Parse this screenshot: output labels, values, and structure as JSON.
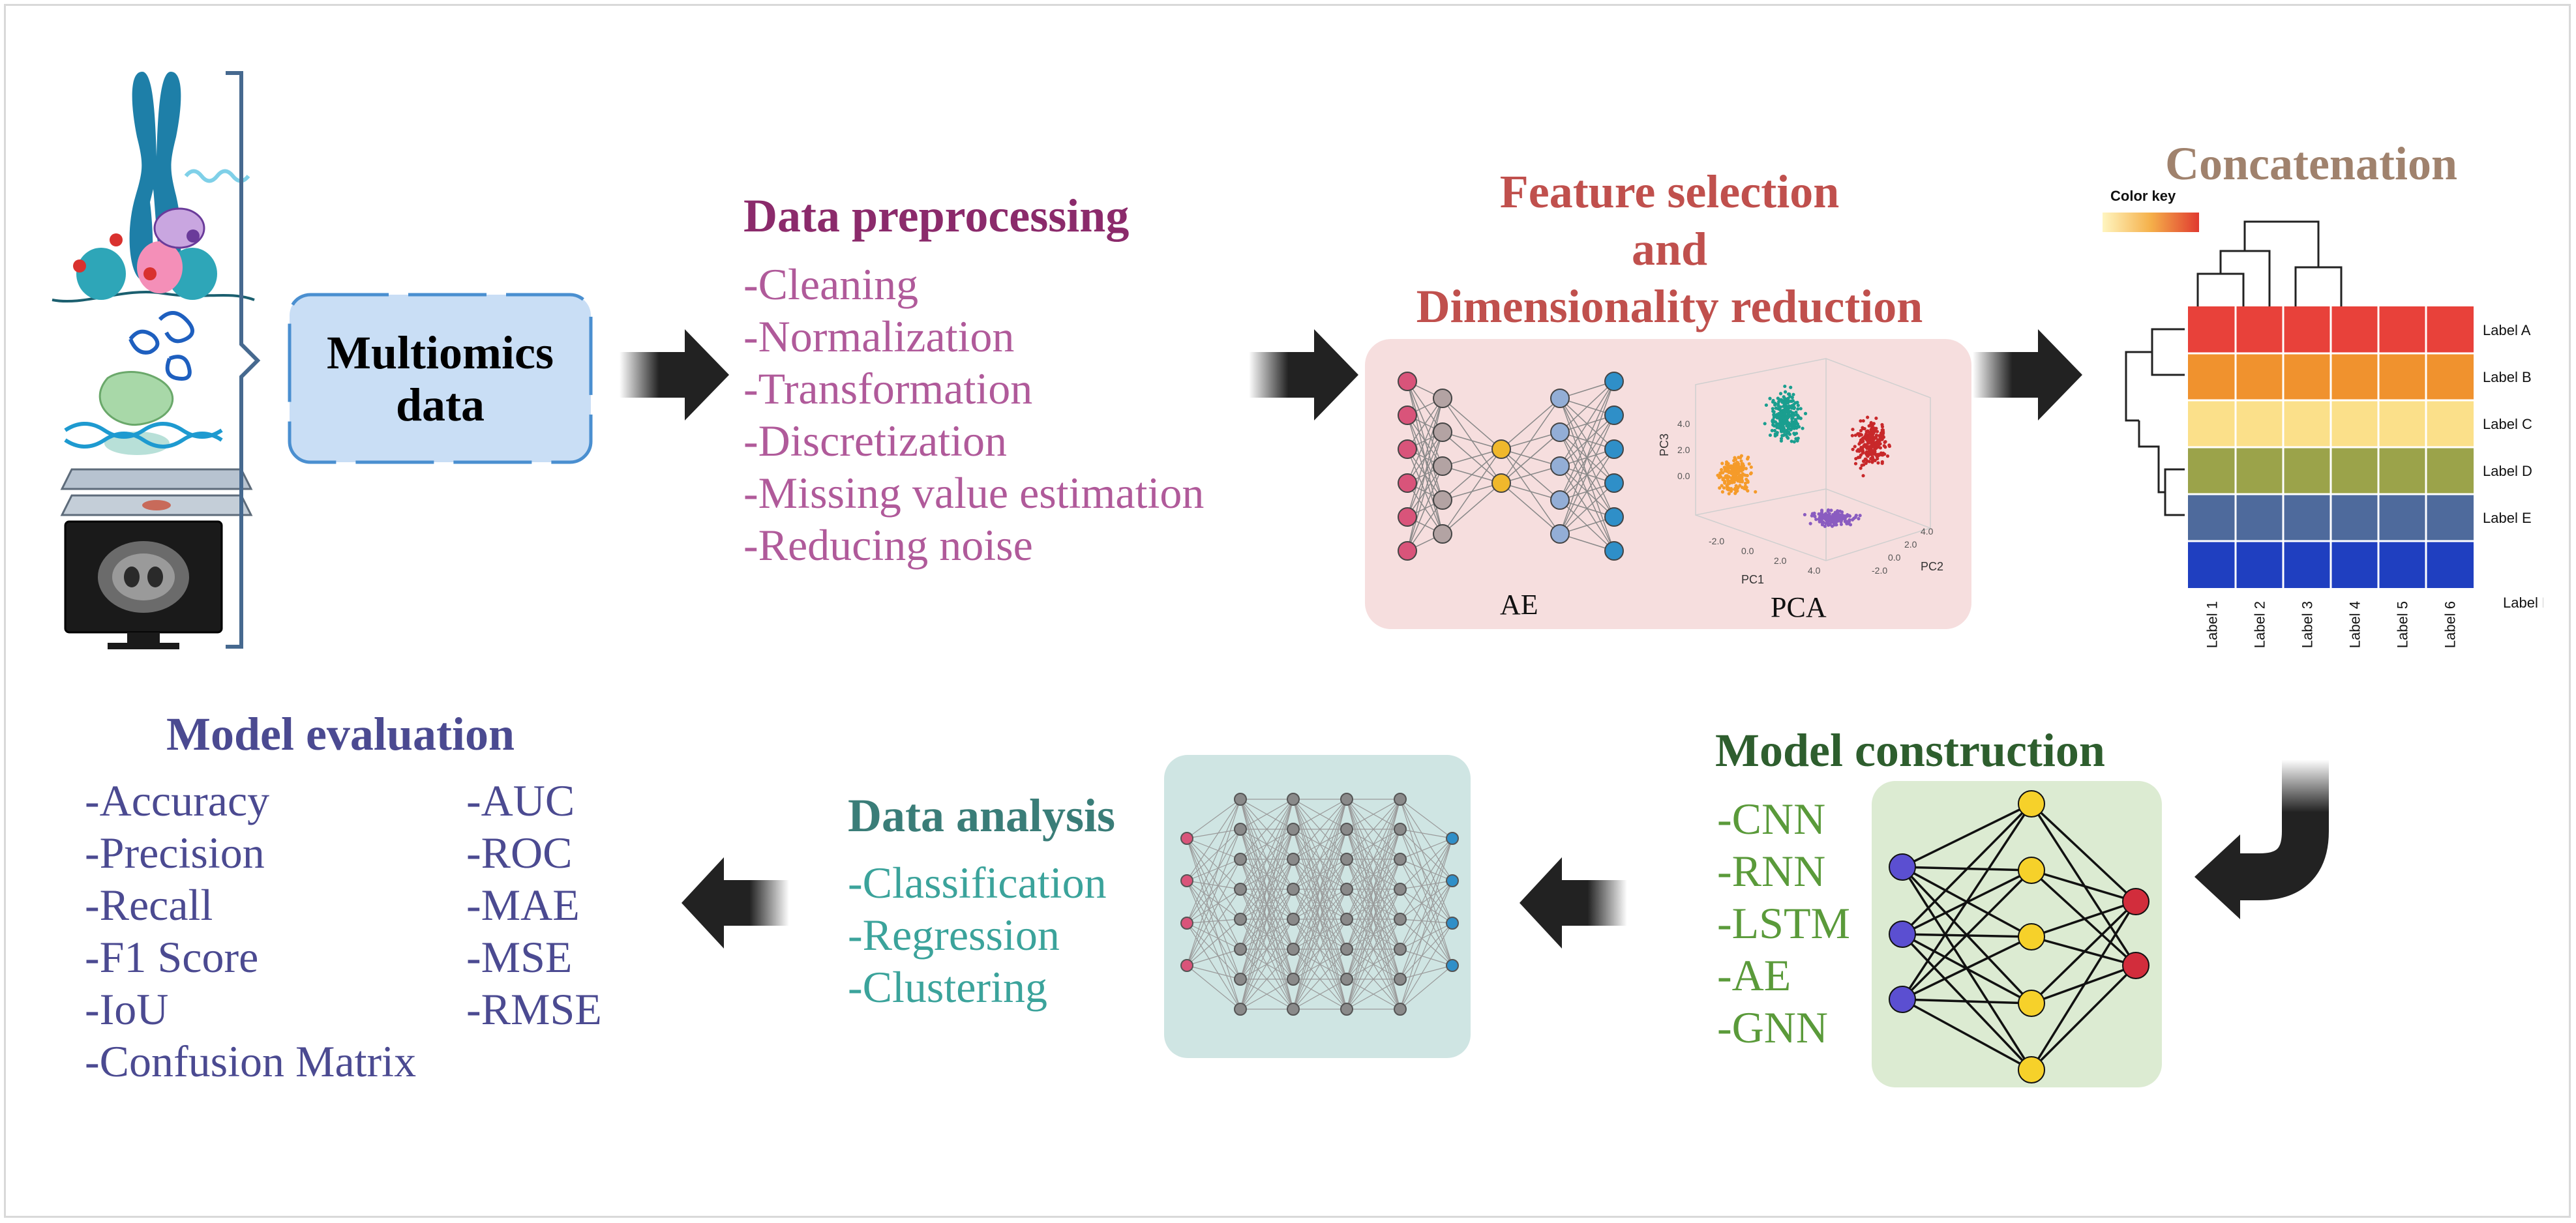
{
  "multiomics": {
    "label_line1": "Multiomics",
    "label_line2": "data"
  },
  "preprocessing": {
    "title": "Data preprocessing",
    "items": [
      "-Cleaning",
      "-Normalization",
      "-Transformation",
      "-Discretization",
      "-Missing value estimation",
      "-Reducing noise"
    ]
  },
  "feature": {
    "title_line1": "Feature selection",
    "title_line2": "and",
    "title_line3": "Dimensionality reduction",
    "ae_label": "AE",
    "pca_label": "PCA",
    "axis_pc1": "PC1",
    "axis_pc2": "PC2",
    "axis_pc3": "PC3",
    "pc_ticks": [
      "-2.0",
      "0.0",
      "2.0",
      "4.0"
    ]
  },
  "concatenation": {
    "title": "Concatenation",
    "color_key": "Color key",
    "row_labels": [
      "Label A",
      "Label B",
      "Label C",
      "Label D",
      "Label E",
      "Label F"
    ],
    "col_labels": [
      "Label 1",
      "Label 2",
      "Label 3",
      "Label 4",
      "Label 5",
      "Label 6"
    ],
    "row_colors": [
      "#e8413a",
      "#f0922e",
      "#fbe08a",
      "#9ba34a",
      "#4e6a9c",
      "#1f3fc0"
    ]
  },
  "model_construction": {
    "title": "Model construction",
    "items": [
      "-CNN",
      "-RNN",
      "-LSTM",
      "-AE",
      "-GNN"
    ]
  },
  "data_analysis": {
    "title": "Data analysis",
    "items": [
      "-Classification",
      "-Regression",
      "-Clustering"
    ]
  },
  "model_evaluation": {
    "title": "Model evaluation",
    "left_items": [
      "-Accuracy",
      "-Precision",
      "-Recall",
      "-F1 Score",
      "-IoU",
      "-Confusion Matrix"
    ],
    "right_items": [
      "-AUC",
      "-ROC",
      "-MAE",
      "-MSE",
      "-RMSE"
    ]
  },
  "colors": {
    "preprocessing_title": "#8b2a6b",
    "preprocessing_items": "#b05a9a",
    "feature_title": "#c0504d",
    "concatenation_title": "#a0826d",
    "model_construction_title": "#2e5e2e",
    "model_construction_items": "#5a9a3a",
    "data_analysis_title": "#3a7d78",
    "data_analysis_items": "#3ba39b",
    "model_evaluation": "#4b4a91"
  }
}
